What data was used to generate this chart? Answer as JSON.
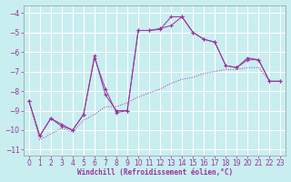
{
  "bg_color": "#c8eef0",
  "grid_color": "#aadddd",
  "line_color": "#993399",
  "xlim": [
    -0.5,
    23.5
  ],
  "ylim": [
    -11.3,
    -3.6
  ],
  "xticks": [
    0,
    1,
    2,
    3,
    4,
    5,
    6,
    7,
    8,
    9,
    10,
    11,
    12,
    13,
    14,
    15,
    16,
    17,
    18,
    19,
    20,
    21,
    22,
    23
  ],
  "yticks": [
    -11,
    -10,
    -9,
    -8,
    -7,
    -6,
    -5,
    -4
  ],
  "xlabel": "Windchill (Refroidissement éolien,°C)",
  "sA_y": [
    -8.5,
    -10.5,
    -10.2,
    -9.9,
    -10.1,
    -9.5,
    -9.2,
    -8.8,
    -8.8,
    -8.6,
    -8.3,
    -8.1,
    -7.9,
    -7.6,
    -7.4,
    -7.3,
    -7.1,
    -7.0,
    -6.9,
    -6.9,
    -6.8,
    -6.8,
    -7.5,
    -7.5
  ],
  "sB_y": [
    -8.5,
    -10.3,
    -9.4,
    -9.7,
    -10.0,
    -9.2,
    -6.2,
    -8.2,
    -9.0,
    -9.0,
    -4.9,
    -4.9,
    -4.8,
    -4.65,
    -4.2,
    -5.0,
    -5.35,
    -5.5,
    -6.7,
    -6.8,
    -6.3,
    -6.4,
    -7.5,
    -7.5
  ],
  "sC_y": [
    -8.5,
    -10.3,
    -9.4,
    -9.8,
    -10.0,
    -9.2,
    -6.3,
    -7.9,
    -9.1,
    -9.0,
    -4.9,
    -4.9,
    -4.85,
    -4.2,
    -4.2,
    -5.0,
    -5.35,
    -5.5,
    -6.7,
    -6.8,
    -6.4,
    -6.4,
    -7.5,
    -7.5
  ]
}
